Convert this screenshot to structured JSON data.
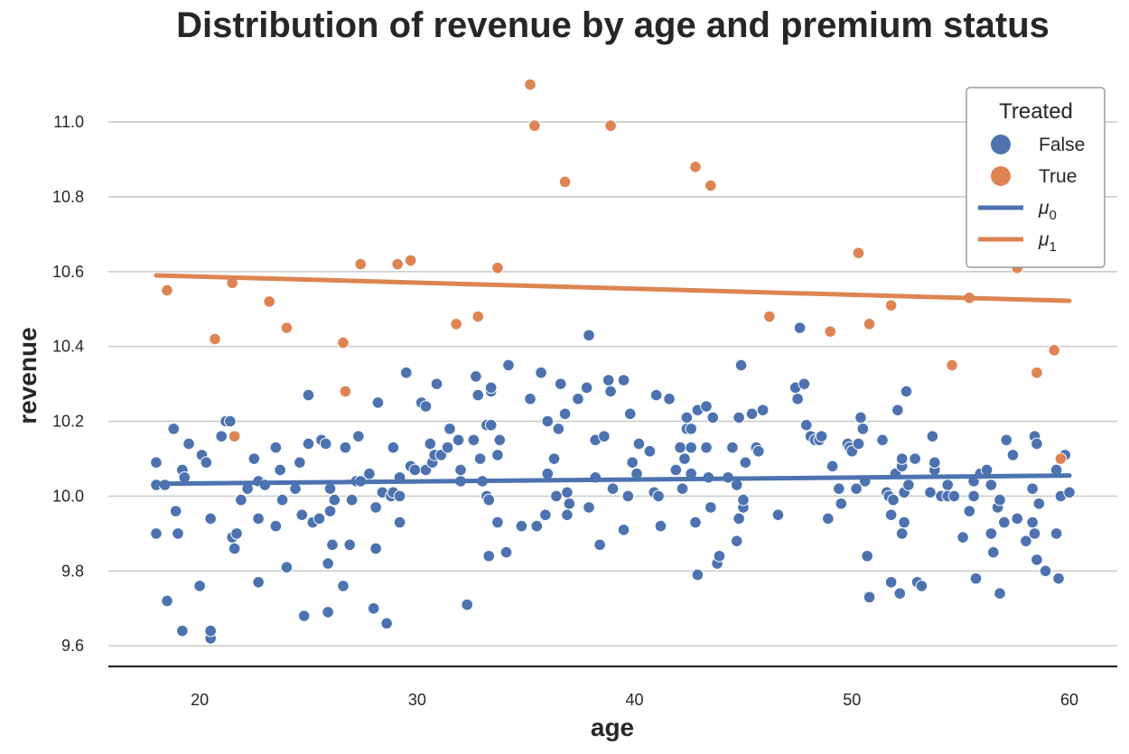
{
  "chart_data": {
    "type": "scatter",
    "title": "Distribution of revenue by age and premium status",
    "xlabel": "age",
    "ylabel": "revenue",
    "xlim": [
      15.8,
      62.2
    ],
    "ylim": [
      9.545,
      11.145
    ],
    "xticks": [
      20,
      30,
      40,
      50,
      60
    ],
    "yticks": [
      9.6,
      9.8,
      10.0,
      10.2,
      10.4,
      10.6,
      10.8,
      11.0
    ],
    "xtick_labels": [
      "20",
      "30",
      "40",
      "50",
      "60"
    ],
    "ytick_labels": [
      "9.6",
      "9.8",
      "10.0",
      "10.2",
      "10.4",
      "10.6",
      "10.8",
      "11.0"
    ],
    "grid": "horizontal",
    "legend": {
      "title": "Treated",
      "placement": "top-right",
      "entries": [
        {
          "label": "False",
          "kind": "marker",
          "color": "#4c72b0"
        },
        {
          "label": "True",
          "kind": "marker",
          "color": "#dd8452"
        },
        {
          "label": "μ",
          "sub": "0",
          "kind": "line",
          "color": "#4c72b0"
        },
        {
          "label": "μ",
          "sub": "1",
          "kind": "line",
          "color": "#dd8452"
        }
      ]
    },
    "series": [
      {
        "name": "False",
        "color": "#4c72b0",
        "points": [
          [
            18.0,
            10.09
          ],
          [
            18.0,
            10.03
          ],
          [
            18.0,
            9.9
          ],
          [
            18.4,
            10.03
          ],
          [
            18.5,
            9.72
          ],
          [
            18.8,
            10.18
          ],
          [
            18.9,
            9.96
          ],
          [
            19.0,
            9.9
          ],
          [
            19.2,
            9.64
          ],
          [
            19.2,
            10.07
          ],
          [
            19.3,
            10.05
          ],
          [
            19.5,
            10.14
          ],
          [
            20.0,
            9.76
          ],
          [
            20.1,
            10.11
          ],
          [
            20.3,
            10.09
          ],
          [
            20.5,
            9.94
          ],
          [
            20.5,
            9.62
          ],
          [
            20.5,
            9.64
          ],
          [
            21.0,
            10.16
          ],
          [
            21.2,
            10.2
          ],
          [
            21.4,
            10.2
          ],
          [
            21.5,
            9.89
          ],
          [
            21.6,
            9.86
          ],
          [
            21.7,
            9.9
          ],
          [
            21.9,
            9.99
          ],
          [
            22.2,
            10.02
          ],
          [
            22.5,
            10.1
          ],
          [
            22.7,
            9.77
          ],
          [
            22.7,
            10.04
          ],
          [
            22.7,
            9.94
          ],
          [
            23.0,
            10.03
          ],
          [
            23.5,
            10.13
          ],
          [
            23.5,
            9.92
          ],
          [
            23.7,
            10.07
          ],
          [
            23.8,
            9.99
          ],
          [
            24.0,
            9.81
          ],
          [
            24.4,
            10.02
          ],
          [
            24.6,
            10.09
          ],
          [
            24.7,
            9.95
          ],
          [
            24.8,
            9.68
          ],
          [
            25.0,
            10.27
          ],
          [
            25.0,
            10.14
          ],
          [
            25.2,
            9.93
          ],
          [
            25.5,
            9.94
          ],
          [
            25.6,
            10.15
          ],
          [
            25.8,
            10.14
          ],
          [
            25.9,
            9.82
          ],
          [
            25.9,
            9.69
          ],
          [
            26.0,
            9.96
          ],
          [
            26.0,
            10.02
          ],
          [
            26.1,
            9.87
          ],
          [
            26.2,
            9.99
          ],
          [
            26.6,
            9.76
          ],
          [
            26.7,
            10.13
          ],
          [
            26.9,
            9.87
          ],
          [
            27.0,
            9.99
          ],
          [
            27.2,
            10.04
          ],
          [
            27.3,
            10.16
          ],
          [
            27.4,
            10.04
          ],
          [
            27.8,
            10.06
          ],
          [
            28.0,
            9.7
          ],
          [
            28.1,
            9.86
          ],
          [
            28.1,
            9.97
          ],
          [
            28.2,
            10.25
          ],
          [
            28.4,
            10.01
          ],
          [
            28.6,
            9.66
          ],
          [
            28.8,
            10.0
          ],
          [
            28.9,
            10.13
          ],
          [
            28.9,
            10.01
          ],
          [
            29.2,
            10.0
          ],
          [
            29.2,
            9.93
          ],
          [
            29.2,
            10.05
          ],
          [
            29.5,
            10.33
          ],
          [
            29.7,
            10.08
          ],
          [
            29.9,
            10.07
          ],
          [
            30.2,
            10.25
          ],
          [
            30.4,
            10.24
          ],
          [
            30.4,
            10.07
          ],
          [
            30.6,
            10.14
          ],
          [
            30.7,
            10.09
          ],
          [
            30.8,
            10.11
          ],
          [
            30.9,
            10.3
          ],
          [
            31.1,
            10.11
          ],
          [
            31.4,
            10.13
          ],
          [
            31.5,
            10.18
          ],
          [
            31.9,
            10.15
          ],
          [
            32.0,
            10.04
          ],
          [
            32.0,
            10.07
          ],
          [
            32.3,
            9.71
          ],
          [
            32.6,
            10.15
          ],
          [
            32.7,
            10.32
          ],
          [
            32.8,
            10.27
          ],
          [
            32.9,
            10.1
          ],
          [
            33.0,
            10.04
          ],
          [
            33.2,
            10.19
          ],
          [
            33.2,
            10.0
          ],
          [
            33.3,
            9.99
          ],
          [
            33.3,
            9.84
          ],
          [
            33.4,
            10.28
          ],
          [
            33.4,
            10.29
          ],
          [
            33.4,
            10.19
          ],
          [
            33.7,
            10.11
          ],
          [
            33.7,
            9.93
          ],
          [
            33.8,
            10.15
          ],
          [
            34.1,
            9.85
          ],
          [
            34.2,
            10.35
          ],
          [
            34.8,
            9.92
          ],
          [
            35.2,
            10.26
          ],
          [
            35.5,
            9.92
          ],
          [
            35.7,
            10.33
          ],
          [
            35.9,
            9.95
          ],
          [
            36.0,
            10.2
          ],
          [
            36.0,
            10.06
          ],
          [
            36.3,
            10.1
          ],
          [
            36.4,
            10.0
          ],
          [
            36.5,
            10.18
          ],
          [
            36.6,
            10.3
          ],
          [
            36.8,
            10.22
          ],
          [
            36.9,
            10.01
          ],
          [
            36.9,
            9.95
          ],
          [
            37.0,
            9.98
          ],
          [
            37.4,
            10.26
          ],
          [
            37.8,
            10.29
          ],
          [
            37.9,
            10.43
          ],
          [
            37.9,
            9.97
          ],
          [
            38.2,
            10.05
          ],
          [
            38.2,
            10.15
          ],
          [
            38.4,
            9.87
          ],
          [
            38.6,
            10.16
          ],
          [
            38.8,
            10.31
          ],
          [
            38.9,
            10.28
          ],
          [
            39.0,
            10.02
          ],
          [
            39.5,
            9.91
          ],
          [
            39.5,
            10.31
          ],
          [
            39.7,
            10.0
          ],
          [
            39.8,
            10.22
          ],
          [
            39.9,
            10.09
          ],
          [
            40.1,
            10.06
          ],
          [
            40.2,
            10.14
          ],
          [
            40.7,
            10.12
          ],
          [
            40.9,
            10.01
          ],
          [
            41.0,
            10.27
          ],
          [
            41.1,
            10.0
          ],
          [
            41.2,
            9.92
          ],
          [
            41.6,
            10.26
          ],
          [
            41.9,
            10.07
          ],
          [
            42.1,
            10.13
          ],
          [
            42.2,
            10.02
          ],
          [
            42.3,
            10.1
          ],
          [
            42.4,
            10.21
          ],
          [
            42.4,
            10.18
          ],
          [
            42.6,
            10.13
          ],
          [
            42.6,
            10.06
          ],
          [
            42.6,
            10.18
          ],
          [
            42.8,
            9.93
          ],
          [
            42.9,
            9.79
          ],
          [
            42.9,
            10.23
          ],
          [
            43.3,
            10.24
          ],
          [
            43.3,
            10.13
          ],
          [
            43.4,
            10.05
          ],
          [
            43.5,
            9.97
          ],
          [
            43.6,
            10.21
          ],
          [
            43.8,
            9.82
          ],
          [
            43.9,
            9.84
          ],
          [
            44.3,
            10.05
          ],
          [
            44.5,
            10.13
          ],
          [
            44.7,
            9.88
          ],
          [
            44.7,
            10.03
          ],
          [
            44.8,
            10.21
          ],
          [
            44.8,
            9.94
          ],
          [
            44.9,
            10.35
          ],
          [
            45.0,
            9.97
          ],
          [
            45.0,
            9.99
          ],
          [
            45.1,
            10.09
          ],
          [
            45.4,
            10.22
          ],
          [
            45.6,
            10.13
          ],
          [
            45.7,
            10.12
          ],
          [
            45.9,
            10.23
          ],
          [
            46.6,
            9.95
          ],
          [
            47.4,
            10.29
          ],
          [
            47.5,
            10.26
          ],
          [
            47.6,
            10.45
          ],
          [
            47.8,
            10.3
          ],
          [
            47.9,
            10.19
          ],
          [
            48.1,
            10.16
          ],
          [
            48.3,
            10.15
          ],
          [
            48.5,
            10.15
          ],
          [
            48.6,
            10.16
          ],
          [
            48.9,
            9.94
          ],
          [
            49.1,
            10.08
          ],
          [
            49.4,
            10.02
          ],
          [
            49.5,
            9.98
          ],
          [
            49.8,
            10.14
          ],
          [
            49.9,
            10.13
          ],
          [
            50.0,
            10.12
          ],
          [
            50.2,
            10.02
          ],
          [
            50.3,
            10.14
          ],
          [
            50.4,
            10.21
          ],
          [
            50.5,
            10.18
          ],
          [
            50.6,
            10.04
          ],
          [
            50.7,
            9.84
          ],
          [
            50.8,
            9.73
          ],
          [
            51.4,
            10.15
          ],
          [
            51.6,
            10.01
          ],
          [
            51.7,
            10.0
          ],
          [
            51.8,
            9.95
          ],
          [
            51.8,
            9.77
          ],
          [
            51.9,
            9.99
          ],
          [
            52.0,
            10.06
          ],
          [
            52.1,
            10.23
          ],
          [
            52.2,
            9.74
          ],
          [
            52.3,
            10.08
          ],
          [
            52.3,
            10.1
          ],
          [
            52.3,
            9.9
          ],
          [
            52.4,
            9.93
          ],
          [
            52.4,
            10.01
          ],
          [
            52.5,
            10.28
          ],
          [
            52.6,
            10.03
          ],
          [
            52.9,
            10.1
          ],
          [
            53.0,
            9.77
          ],
          [
            53.2,
            9.76
          ],
          [
            53.6,
            10.01
          ],
          [
            53.7,
            10.16
          ],
          [
            53.8,
            10.07
          ],
          [
            53.8,
            10.09
          ],
          [
            54.1,
            10.0
          ],
          [
            54.4,
            10.03
          ],
          [
            54.4,
            10.0
          ],
          [
            54.7,
            10.0
          ],
          [
            55.1,
            9.89
          ],
          [
            55.4,
            9.96
          ],
          [
            55.6,
            10.04
          ],
          [
            55.6,
            10.0
          ],
          [
            55.7,
            9.78
          ],
          [
            55.9,
            10.06
          ],
          [
            56.2,
            10.07
          ],
          [
            56.4,
            10.03
          ],
          [
            56.4,
            9.9
          ],
          [
            56.5,
            9.85
          ],
          [
            56.7,
            9.97
          ],
          [
            56.8,
            9.74
          ],
          [
            56.8,
            9.99
          ],
          [
            57.0,
            9.93
          ],
          [
            57.1,
            10.15
          ],
          [
            57.4,
            10.11
          ],
          [
            57.6,
            9.94
          ],
          [
            58.0,
            9.88
          ],
          [
            58.3,
            10.02
          ],
          [
            58.3,
            9.93
          ],
          [
            58.4,
            10.16
          ],
          [
            58.4,
            9.9
          ],
          [
            58.5,
            9.83
          ],
          [
            58.5,
            10.14
          ],
          [
            58.6,
            9.98
          ],
          [
            58.9,
            9.8
          ],
          [
            59.4,
            10.07
          ],
          [
            59.4,
            9.9
          ],
          [
            59.5,
            9.78
          ],
          [
            59.6,
            10.0
          ],
          [
            59.8,
            10.11
          ],
          [
            60.0,
            10.01
          ]
        ]
      },
      {
        "name": "True",
        "color": "#dd8452",
        "points": [
          [
            18.5,
            10.55
          ],
          [
            20.7,
            10.42
          ],
          [
            21.5,
            10.57
          ],
          [
            21.6,
            10.16
          ],
          [
            23.2,
            10.52
          ],
          [
            24.0,
            10.45
          ],
          [
            26.6,
            10.41
          ],
          [
            26.7,
            10.28
          ],
          [
            27.4,
            10.62
          ],
          [
            29.1,
            10.62
          ],
          [
            29.7,
            10.63
          ],
          [
            31.8,
            10.46
          ],
          [
            32.8,
            10.48
          ],
          [
            33.7,
            10.61
          ],
          [
            35.2,
            11.1
          ],
          [
            35.4,
            10.99
          ],
          [
            36.8,
            10.84
          ],
          [
            38.9,
            10.99
          ],
          [
            42.8,
            10.88
          ],
          [
            43.5,
            10.83
          ],
          [
            46.2,
            10.48
          ],
          [
            49.0,
            10.44
          ],
          [
            50.3,
            10.65
          ],
          [
            50.8,
            10.46
          ],
          [
            51.8,
            10.51
          ],
          [
            54.6,
            10.35
          ],
          [
            55.4,
            10.53
          ],
          [
            57.6,
            10.61
          ],
          [
            58.5,
            10.33
          ],
          [
            59.3,
            10.39
          ],
          [
            59.6,
            10.1
          ]
        ]
      }
    ],
    "lines": [
      {
        "name": "μ0",
        "color": "#4c72b0",
        "x": [
          18,
          60
        ],
        "y": [
          10.033,
          10.055
        ]
      },
      {
        "name": "μ1",
        "color": "#dd8452",
        "x": [
          18,
          60
        ],
        "y": [
          10.59,
          10.522
        ]
      }
    ]
  }
}
